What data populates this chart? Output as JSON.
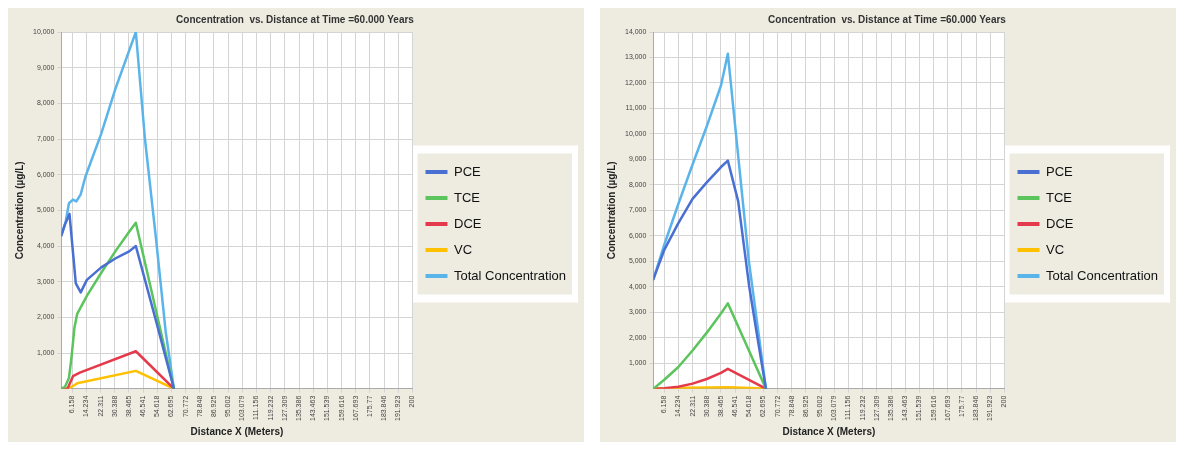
{
  "chart_data": [
    {
      "type": "line",
      "title": "Concentration  vs. Distance at Time =60.000 Years",
      "xlabel": "Distance X (Meters)",
      "ylabel": "Concentration (µg/L)",
      "xlim": [
        0,
        200
      ],
      "ylim": [
        0,
        10000
      ],
      "xticks": [
        6.158,
        14.234,
        22.311,
        30.388,
        38.465,
        46.541,
        54.618,
        62.695,
        70.772,
        78.848,
        86.925,
        95.002,
        103.079,
        111.156,
        119.232,
        127.309,
        135.386,
        143.463,
        151.539,
        159.616,
        167.693,
        175.77,
        183.846,
        191.923,
        200
      ],
      "yticks": [
        {
          "value": 1000,
          "label": "1,000"
        },
        {
          "value": 2000,
          "label": "2,000"
        },
        {
          "value": 3000,
          "label": "3,000"
        },
        {
          "value": 4000,
          "label": "4,000"
        },
        {
          "value": 5000,
          "label": "5,000"
        },
        {
          "value": 6000,
          "label": "6,000"
        },
        {
          "value": 7000,
          "label": "7,000"
        },
        {
          "value": 8000,
          "label": "8,000"
        },
        {
          "value": 9000,
          "label": "9,000"
        },
        {
          "value": 10000,
          "label": "10,000"
        }
      ],
      "grid": true,
      "legend": "right",
      "series": [
        {
          "name": "PCE",
          "color": "#4a6fd3",
          "x": [
            0,
            2,
            4.6,
            8.2,
            11,
            14.5,
            22.7,
            30.7,
            38.6,
            42.4,
            53.9,
            64.1
          ],
          "values": [
            4300,
            4600,
            4900,
            2950,
            2700,
            3050,
            3400,
            3650,
            3850,
            4000,
            1900,
            0
          ]
        },
        {
          "name": "TCE",
          "color": "#5cc45c",
          "x": [
            0,
            2,
            4.3,
            5.8,
            7.4,
            9,
            14.5,
            22.7,
            30.7,
            38.6,
            42.4,
            64.1
          ],
          "values": [
            0,
            50,
            300,
            900,
            1700,
            2100,
            2600,
            3250,
            3850,
            4400,
            4650,
            0
          ]
        },
        {
          "name": "DCE",
          "color": "#e53a4a",
          "x": [
            0,
            3.5,
            6.6,
            10.5,
            42.4,
            64.1
          ],
          "values": [
            0,
            0,
            350,
            450,
            1050,
            0
          ]
        },
        {
          "name": "VC",
          "color": "#ffc000",
          "x": [
            0,
            4,
            9,
            42.4,
            64.1
          ],
          "values": [
            0,
            0,
            150,
            500,
            0
          ]
        },
        {
          "name": "Total Concentration",
          "color": "#5ab4ea",
          "x": [
            0,
            2.5,
            4.3,
            6.6,
            8.5,
            11,
            13.7,
            22.7,
            30.7,
            42.4,
            47.6,
            53.9,
            59.4,
            64.1
          ],
          "values": [
            4300,
            4700,
            5200,
            5300,
            5250,
            5450,
            5950,
            7150,
            8400,
            10000,
            7000,
            4200,
            1600,
            0
          ]
        }
      ]
    },
    {
      "type": "line",
      "title": "Concentration  vs. Distance at Time =60.000 Years",
      "xlabel": "Distance X (Meters)",
      "ylabel": "Concentration (µg/L)",
      "xlim": [
        0,
        200
      ],
      "ylim": [
        0,
        14000
      ],
      "xticks": [
        6.158,
        14.234,
        22.311,
        30.388,
        38.465,
        46.541,
        54.618,
        62.695,
        70.772,
        78.848,
        86.925,
        95.002,
        103.079,
        111.156,
        119.232,
        127.309,
        135.386,
        143.463,
        151.539,
        159.616,
        167.693,
        175.77,
        183.846,
        191.923,
        200
      ],
      "yticks": [
        {
          "value": 1000,
          "label": "1,000"
        },
        {
          "value": 2000,
          "label": "2,000"
        },
        {
          "value": 3000,
          "label": "3,000"
        },
        {
          "value": 4000,
          "label": "4,000"
        },
        {
          "value": 5000,
          "label": "5,000"
        },
        {
          "value": 6000,
          "label": "6,000"
        },
        {
          "value": 7000,
          "label": "7,000"
        },
        {
          "value": 8000,
          "label": "8,000"
        },
        {
          "value": 9000,
          "label": "9,000"
        },
        {
          "value": 10000,
          "label": "10,000"
        },
        {
          "value": 11000,
          "label": "11,000"
        },
        {
          "value": 12000,
          "label": "12,000"
        },
        {
          "value": 13000,
          "label": "13,000"
        },
        {
          "value": 14000,
          "label": "14,000"
        }
      ],
      "grid": true,
      "legend": "right",
      "series": [
        {
          "name": "PCE",
          "color": "#4a6fd3",
          "x": [
            0,
            6.2,
            14.2,
            22.3,
            30.4,
            38.5,
            42.4,
            48.3,
            54.6,
            59.4,
            64.1
          ],
          "values": [
            4300,
            5450,
            6500,
            7450,
            8100,
            8700,
            8950,
            7350,
            4000,
            1950,
            0
          ]
        },
        {
          "name": "TCE",
          "color": "#5cc45c",
          "x": [
            0,
            6.2,
            14.2,
            22.3,
            30.4,
            38.5,
            42.4,
            64.1
          ],
          "values": [
            0,
            350,
            850,
            1500,
            2200,
            2950,
            3350,
            0
          ]
        },
        {
          "name": "DCE",
          "color": "#e53a4a",
          "x": [
            0,
            6.2,
            14.2,
            22.3,
            30.4,
            38.5,
            42.4,
            64.1
          ],
          "values": [
            0,
            20,
            80,
            200,
            380,
            620,
            780,
            0
          ]
        },
        {
          "name": "VC",
          "color": "#ffc000",
          "x": [
            0,
            20,
            42.4,
            64.1
          ],
          "values": [
            0,
            40,
            60,
            0
          ]
        },
        {
          "name": "Total Concentration",
          "color": "#5ab4ea",
          "x": [
            0,
            6.2,
            14.2,
            22.3,
            30.4,
            38.5,
            42.4,
            54.3,
            64.1
          ],
          "values": [
            4300,
            5650,
            7250,
            8800,
            10300,
            11900,
            13150,
            5050,
            0
          ]
        }
      ]
    }
  ]
}
